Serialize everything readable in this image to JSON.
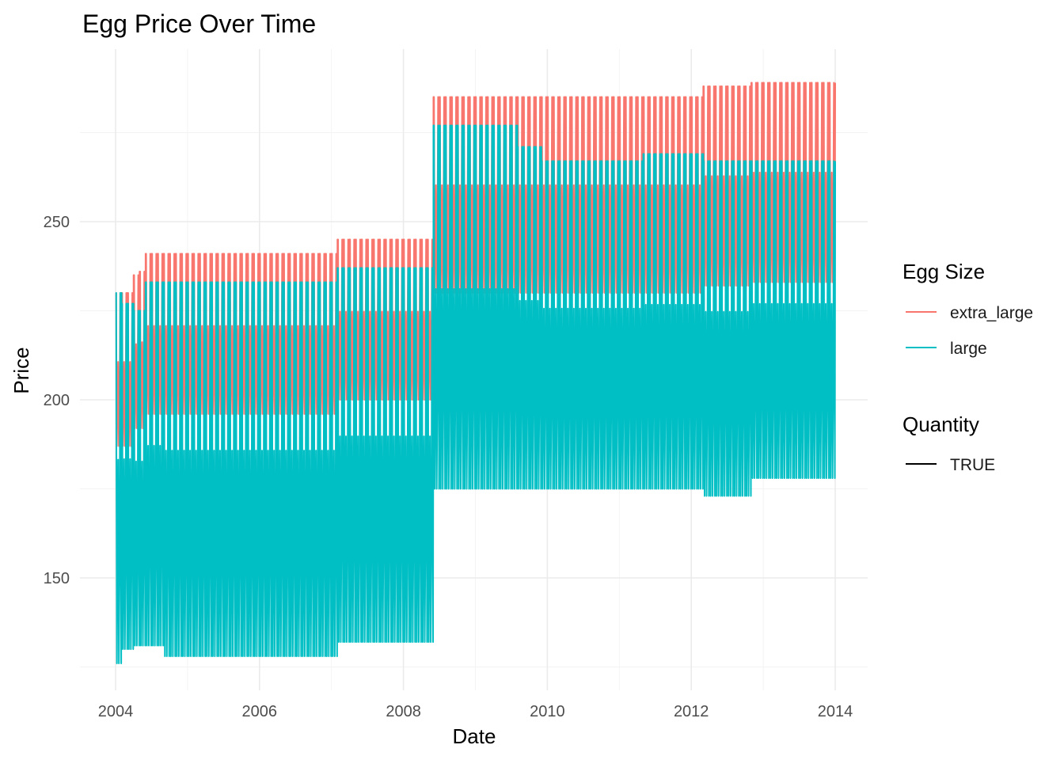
{
  "chart_data": {
    "type": "line",
    "title": "Egg Price Over Time",
    "xlabel": "Date",
    "ylabel": "Price",
    "xlim": [
      2004.0,
      2014.0
    ],
    "ylim": [
      120,
      290
    ],
    "x_major_ticks": [
      2004,
      2006,
      2008,
      2010,
      2012,
      2014
    ],
    "x_tick_labels": [
      "2004",
      "2006",
      "2008",
      "2010",
      "2012",
      "2014"
    ],
    "y_major_ticks": [
      150,
      200,
      250
    ],
    "y_tick_labels": [
      "150",
      "200",
      "250"
    ],
    "grid": true,
    "legend_position": "right",
    "legends": [
      {
        "title": "Egg Size",
        "entries": [
          {
            "label": "extra_large",
            "color": "#F8766D"
          },
          {
            "label": "large",
            "color": "#00BFC4"
          }
        ]
      },
      {
        "title": "Quantity",
        "entries": [
          {
            "label": "TRUE",
            "color": "#000000"
          }
        ]
      }
    ],
    "x_start": "2004-01",
    "x_step_months": 1,
    "note_pattern": "monthly values; each month's series oscillates between the listed high (max) and low (min) price",
    "series": [
      {
        "name": "extra_large",
        "color": "#F8766D",
        "segments": [
          {
            "from": "2004-01",
            "to": "2004-01",
            "high": 230,
            "low": 187
          },
          {
            "from": "2004-02",
            "to": "2004-03",
            "high": 230,
            "low": 187
          },
          {
            "from": "2004-04",
            "to": "2004-04",
            "high": 235,
            "low": 192
          },
          {
            "from": "2004-05",
            "to": "2004-05",
            "high": 236,
            "low": 192
          },
          {
            "from": "2004-06",
            "to": "2007-01",
            "high": 241,
            "low": 196
          },
          {
            "from": "2007-02",
            "to": "2008-05",
            "high": 245,
            "low": 200
          },
          {
            "from": "2008-06",
            "to": "2012-02",
            "high": 285,
            "low": 230
          },
          {
            "from": "2012-03",
            "to": "2012-10",
            "high": 288,
            "low": 232
          },
          {
            "from": "2012-11",
            "to": "2013-12",
            "high": 289,
            "low": 233
          }
        ]
      },
      {
        "name": "large",
        "color": "#00BFC4",
        "segments": [
          {
            "from": "2004-01",
            "to": "2004-01",
            "high": 230,
            "low": 126
          },
          {
            "from": "2004-02",
            "to": "2004-03",
            "high": 227,
            "low": 130
          },
          {
            "from": "2004-04",
            "to": "2004-05",
            "high": 225,
            "low": 131
          },
          {
            "from": "2004-06",
            "to": "2004-08",
            "high": 233,
            "low": 131
          },
          {
            "from": "2004-09",
            "to": "2007-01",
            "high": 233,
            "low": 128
          },
          {
            "from": "2007-02",
            "to": "2008-05",
            "high": 237,
            "low": 132
          },
          {
            "from": "2008-06",
            "to": "2009-07",
            "high": 277,
            "low": 175
          },
          {
            "from": "2009-08",
            "to": "2009-11",
            "high": 271,
            "low": 175
          },
          {
            "from": "2009-12",
            "to": "2011-04",
            "high": 267,
            "low": 175
          },
          {
            "from": "2011-05",
            "to": "2012-02",
            "high": 269,
            "low": 175
          },
          {
            "from": "2012-03",
            "to": "2012-10",
            "high": 267,
            "low": 173
          },
          {
            "from": "2012-11",
            "to": "2013-12",
            "high": 267,
            "low": 178
          }
        ]
      }
    ]
  }
}
